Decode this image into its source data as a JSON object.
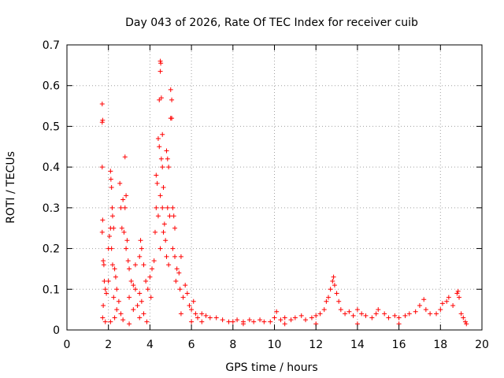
{
  "chart_data": {
    "type": "scatter",
    "title": "Day 043 of 2026, Rate Of TEC Index for receiver cuib",
    "xlabel": "GPS time / hours",
    "ylabel": "ROTI / TECUs",
    "xlim": [
      0,
      20
    ],
    "ylim": [
      0,
      0.7
    ],
    "x_ticks": [
      "0",
      "2",
      "4",
      "6",
      "8",
      "10",
      "12",
      "14",
      "16",
      "18",
      "20"
    ],
    "y_ticks": [
      "0",
      "0.1",
      "0.2",
      "0.3",
      "0.4",
      "0.5",
      "0.6",
      "0.7"
    ],
    "grid": true,
    "marker": "plus",
    "color": "#ff0000",
    "series": [
      {
        "points": [
          [
            1.7,
            0.555
          ],
          [
            1.72,
            0.515
          ],
          [
            1.7,
            0.51
          ],
          [
            1.7,
            0.4
          ],
          [
            1.72,
            0.27
          ],
          [
            1.7,
            0.24
          ],
          [
            1.75,
            0.17
          ],
          [
            1.78,
            0.16
          ],
          [
            1.8,
            0.12
          ],
          [
            1.85,
            0.1
          ],
          [
            1.9,
            0.09
          ],
          [
            1.75,
            0.06
          ],
          [
            1.72,
            0.03
          ],
          [
            1.85,
            0.02
          ],
          [
            2.0,
            0.2
          ],
          [
            2.05,
            0.23
          ],
          [
            2.1,
            0.39
          ],
          [
            2.12,
            0.37
          ],
          [
            2.15,
            0.35
          ],
          [
            2.18,
            0.3
          ],
          [
            2.2,
            0.28
          ],
          [
            2.1,
            0.25
          ],
          [
            2.25,
            0.25
          ],
          [
            2.15,
            0.2
          ],
          [
            2.2,
            0.16
          ],
          [
            2.3,
            0.15
          ],
          [
            2.35,
            0.13
          ],
          [
            2.0,
            0.12
          ],
          [
            2.4,
            0.1
          ],
          [
            2.25,
            0.08
          ],
          [
            2.5,
            0.07
          ],
          [
            2.4,
            0.05
          ],
          [
            2.6,
            0.04
          ],
          [
            2.3,
            0.03
          ],
          [
            2.1,
            0.02
          ],
          [
            2.7,
            0.025
          ],
          [
            2.55,
            0.36
          ],
          [
            2.6,
            0.3
          ],
          [
            2.7,
            0.32
          ],
          [
            2.65,
            0.25
          ],
          [
            2.75,
            0.24
          ],
          [
            2.8,
            0.425
          ],
          [
            2.85,
            0.33
          ],
          [
            2.8,
            0.3
          ],
          [
            2.9,
            0.22
          ],
          [
            2.85,
            0.2
          ],
          [
            2.95,
            0.17
          ],
          [
            3.0,
            0.15
          ],
          [
            3.1,
            0.12
          ],
          [
            3.2,
            0.11
          ],
          [
            3.3,
            0.1
          ],
          [
            3.0,
            0.08
          ],
          [
            3.4,
            0.06
          ],
          [
            3.5,
            0.09
          ],
          [
            3.6,
            0.07
          ],
          [
            3.2,
            0.05
          ],
          [
            3.7,
            0.04
          ],
          [
            3.5,
            0.03
          ],
          [
            3.85,
            0.02
          ],
          [
            3.0,
            0.015
          ],
          [
            3.3,
            0.16
          ],
          [
            3.5,
            0.18
          ],
          [
            3.55,
            0.22
          ],
          [
            3.6,
            0.2
          ],
          [
            3.7,
            0.16
          ],
          [
            3.8,
            0.12
          ],
          [
            3.9,
            0.1
          ],
          [
            4.0,
            0.13
          ],
          [
            4.1,
            0.15
          ],
          [
            4.05,
            0.08
          ],
          [
            4.2,
            0.17
          ],
          [
            4.25,
            0.24
          ],
          [
            4.3,
            0.38
          ],
          [
            4.35,
            0.36
          ],
          [
            4.3,
            0.3
          ],
          [
            4.4,
            0.47
          ],
          [
            4.45,
            0.45
          ],
          [
            4.5,
            0.66
          ],
          [
            4.52,
            0.655
          ],
          [
            4.5,
            0.635
          ],
          [
            4.45,
            0.565
          ],
          [
            4.55,
            0.57
          ],
          [
            4.6,
            0.48
          ],
          [
            4.55,
            0.42
          ],
          [
            4.6,
            0.4
          ],
          [
            4.65,
            0.35
          ],
          [
            4.5,
            0.33
          ],
          [
            4.4,
            0.28
          ],
          [
            4.6,
            0.3
          ],
          [
            4.7,
            0.26
          ],
          [
            4.65,
            0.24
          ],
          [
            4.5,
            0.2
          ],
          [
            4.75,
            0.22
          ],
          [
            4.8,
            0.44
          ],
          [
            4.85,
            0.42
          ],
          [
            4.9,
            0.4
          ],
          [
            4.85,
            0.3
          ],
          [
            4.95,
            0.28
          ],
          [
            4.8,
            0.18
          ],
          [
            4.9,
            0.16
          ],
          [
            5.0,
            0.59
          ],
          [
            5.05,
            0.565
          ],
          [
            5.0,
            0.52
          ],
          [
            5.05,
            0.52
          ],
          [
            5.1,
            0.3
          ],
          [
            5.15,
            0.28
          ],
          [
            5.2,
            0.25
          ],
          [
            5.1,
            0.2
          ],
          [
            5.2,
            0.18
          ],
          [
            5.3,
            0.15
          ],
          [
            5.25,
            0.12
          ],
          [
            5.4,
            0.14
          ],
          [
            5.5,
            0.18
          ],
          [
            5.45,
            0.1
          ],
          [
            5.6,
            0.08
          ],
          [
            5.7,
            0.11
          ],
          [
            5.8,
            0.09
          ],
          [
            5.9,
            0.06
          ],
          [
            6.0,
            0.05
          ],
          [
            6.1,
            0.07
          ],
          [
            6.2,
            0.04
          ],
          [
            6.3,
            0.03
          ],
          [
            5.5,
            0.04
          ],
          [
            6.0,
            0.02
          ],
          [
            6.5,
            0.04
          ],
          [
            6.7,
            0.035
          ],
          [
            6.5,
            0.02
          ],
          [
            6.9,
            0.03
          ],
          [
            7.2,
            0.03
          ],
          [
            7.5,
            0.025
          ],
          [
            7.8,
            0.02
          ],
          [
            8.0,
            0.02
          ],
          [
            8.2,
            0.025
          ],
          [
            8.5,
            0.02
          ],
          [
            8.8,
            0.025
          ],
          [
            9.0,
            0.02
          ],
          [
            9.3,
            0.025
          ],
          [
            9.5,
            0.02
          ],
          [
            9.8,
            0.02
          ],
          [
            10.0,
            0.03
          ],
          [
            10.1,
            0.045
          ],
          [
            10.3,
            0.025
          ],
          [
            10.5,
            0.03
          ],
          [
            10.8,
            0.025
          ],
          [
            11.0,
            0.03
          ],
          [
            11.3,
            0.035
          ],
          [
            11.5,
            0.025
          ],
          [
            11.8,
            0.03
          ],
          [
            12.0,
            0.035
          ],
          [
            12.2,
            0.04
          ],
          [
            12.4,
            0.05
          ],
          [
            12.5,
            0.07
          ],
          [
            12.6,
            0.08
          ],
          [
            12.7,
            0.1
          ],
          [
            12.8,
            0.12
          ],
          [
            12.85,
            0.13
          ],
          [
            12.9,
            0.11
          ],
          [
            13.0,
            0.09
          ],
          [
            13.1,
            0.07
          ],
          [
            13.2,
            0.05
          ],
          [
            13.4,
            0.04
          ],
          [
            13.6,
            0.045
          ],
          [
            13.8,
            0.035
          ],
          [
            14.0,
            0.05
          ],
          [
            14.2,
            0.04
          ],
          [
            14.4,
            0.035
          ],
          [
            14.7,
            0.03
          ],
          [
            14.9,
            0.04
          ],
          [
            15.0,
            0.05
          ],
          [
            15.3,
            0.04
          ],
          [
            15.5,
            0.03
          ],
          [
            15.8,
            0.035
          ],
          [
            16.0,
            0.03
          ],
          [
            16.3,
            0.035
          ],
          [
            16.5,
            0.04
          ],
          [
            16.8,
            0.045
          ],
          [
            17.0,
            0.06
          ],
          [
            17.2,
            0.075
          ],
          [
            17.3,
            0.05
          ],
          [
            17.5,
            0.04
          ],
          [
            17.8,
            0.04
          ],
          [
            18.0,
            0.05
          ],
          [
            18.1,
            0.065
          ],
          [
            18.3,
            0.07
          ],
          [
            18.4,
            0.08
          ],
          [
            18.6,
            0.06
          ],
          [
            18.8,
            0.09
          ],
          [
            18.85,
            0.095
          ],
          [
            18.9,
            0.08
          ],
          [
            19.0,
            0.04
          ],
          [
            19.1,
            0.03
          ],
          [
            19.2,
            0.02
          ],
          [
            19.25,
            0.015
          ],
          [
            16.0,
            0.015
          ],
          [
            14.0,
            0.015
          ],
          [
            12.0,
            0.015
          ],
          [
            10.5,
            0.015
          ],
          [
            8.5,
            0.015
          ]
        ]
      }
    ]
  }
}
